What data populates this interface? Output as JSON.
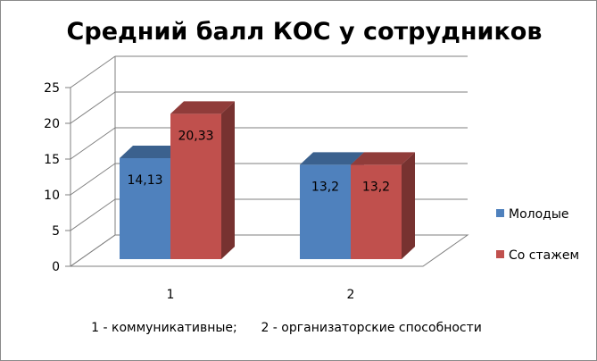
{
  "chart_data": {
    "type": "bar",
    "title": "Средний балл КОС у сотрудников",
    "categories": [
      "1",
      "2"
    ],
    "series": [
      {
        "name": "Молодые",
        "values": [
          14.13,
          13.2
        ],
        "labels": [
          "14,13",
          "13,2"
        ],
        "color": "#4f81bd"
      },
      {
        "name": "Со стажем",
        "values": [
          20.33,
          13.2
        ],
        "labels": [
          "20,33",
          "13,2"
        ],
        "color": "#c0504d"
      }
    ],
    "ylim": [
      0,
      25
    ],
    "yticks": [
      "0",
      "5",
      "10",
      "15",
      "20",
      "25"
    ],
    "grid": true,
    "legend_position": "right",
    "three_d": true,
    "note": "1 - коммуникативные;      2 - организаторские способности"
  }
}
